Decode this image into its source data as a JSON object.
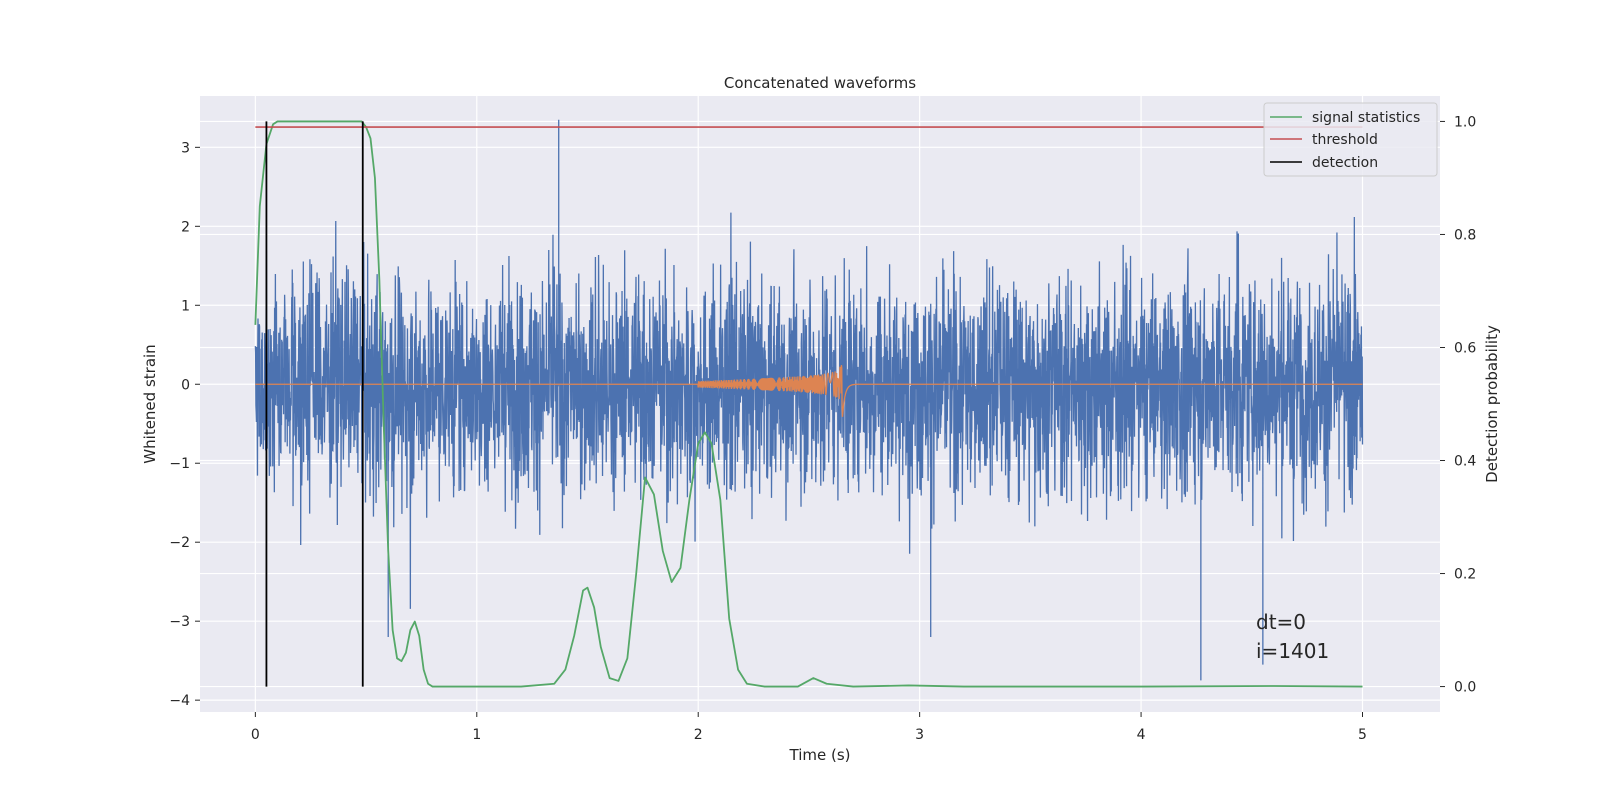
{
  "chart_data": {
    "type": "line",
    "title": "Concatenated waveforms",
    "xlabel": "Time (s)",
    "ylabel": "Whitened strain",
    "y2label": "Detection probability",
    "xlim": [
      -0.25,
      5.35
    ],
    "ylim": [
      -4.15,
      3.65
    ],
    "y2lim": [
      -0.045,
      1.045
    ],
    "x_ticks": [
      0,
      1,
      2,
      3,
      4,
      5
    ],
    "y_ticks": [
      -4,
      -3,
      -2,
      -1,
      0,
      1,
      2,
      3
    ],
    "y2_ticks": [
      0.0,
      0.2,
      0.4,
      0.6,
      0.8,
      1.0
    ],
    "x_tick_labels": [
      "0",
      "1",
      "2",
      "3",
      "4",
      "5"
    ],
    "y_tick_labels": [
      "−4",
      "−3",
      "−2",
      "−1",
      "0",
      "1",
      "2",
      "3"
    ],
    "y2_tick_labels": [
      "0.0",
      "0.2",
      "0.4",
      "0.6",
      "0.8",
      "1.0"
    ],
    "grid": true,
    "legend_position": "top-right",
    "annotations": [
      "dt=0",
      "i=1401"
    ],
    "series": [
      {
        "name": "",
        "color": "#4c72b0",
        "axis": "left",
        "kind": "noise",
        "x_range": [
          0,
          5
        ],
        "envelope_upper_typical": 1.5,
        "envelope_lower_typical": -1.5,
        "max": 3.35,
        "min": -3.75
      },
      {
        "name": "",
        "color": "#dd8452",
        "axis": "left",
        "kind": "chirp",
        "baseline": 0,
        "chirp_start": 2.0,
        "chirp_peak": 2.65,
        "peak_amplitude": 0.48,
        "x_range": [
          0,
          5
        ]
      },
      {
        "name": "signal statistics",
        "color": "#55a868",
        "axis": "right",
        "x": [
          0.0,
          0.02,
          0.05,
          0.08,
          0.1,
          0.15,
          0.2,
          0.3,
          0.4,
          0.45,
          0.48,
          0.5,
          0.52,
          0.54,
          0.56,
          0.58,
          0.6,
          0.62,
          0.64,
          0.66,
          0.68,
          0.7,
          0.72,
          0.74,
          0.76,
          0.78,
          0.8,
          0.83,
          0.9,
          1.0,
          1.2,
          1.35,
          1.4,
          1.44,
          1.48,
          1.5,
          1.53,
          1.56,
          1.6,
          1.64,
          1.68,
          1.72,
          1.76,
          1.8,
          1.84,
          1.88,
          1.92,
          1.96,
          2.0,
          2.03,
          2.06,
          2.1,
          2.14,
          2.18,
          2.22,
          2.3,
          2.45,
          2.52,
          2.58,
          2.7,
          2.95,
          3.2,
          4.0,
          4.6,
          5.0
        ],
        "values": [
          0.64,
          0.85,
          0.96,
          0.995,
          1.0,
          1.0,
          1.0,
          1.0,
          1.0,
          1.0,
          1.0,
          0.99,
          0.97,
          0.9,
          0.72,
          0.46,
          0.24,
          0.1,
          0.05,
          0.045,
          0.06,
          0.1,
          0.115,
          0.09,
          0.03,
          0.005,
          0.0,
          0.0,
          0.0,
          0.0,
          0.0,
          0.005,
          0.03,
          0.09,
          0.17,
          0.175,
          0.14,
          0.07,
          0.015,
          0.01,
          0.05,
          0.2,
          0.37,
          0.34,
          0.24,
          0.185,
          0.21,
          0.33,
          0.43,
          0.45,
          0.43,
          0.33,
          0.12,
          0.03,
          0.005,
          0.0,
          0.0,
          0.015,
          0.005,
          0.0,
          0.002,
          0.0,
          0.0,
          0.001,
          0.0
        ]
      },
      {
        "name": "threshold",
        "color": "#c44e52",
        "axis": "right",
        "x": [
          0,
          5
        ],
        "values": [
          0.99,
          0.99
        ]
      },
      {
        "name": "detection",
        "color": "#000000",
        "axis": "right",
        "kind": "vlines",
        "x": [
          0.05,
          0.485
        ],
        "y_range": [
          0.0,
          1.0
        ]
      }
    ]
  }
}
